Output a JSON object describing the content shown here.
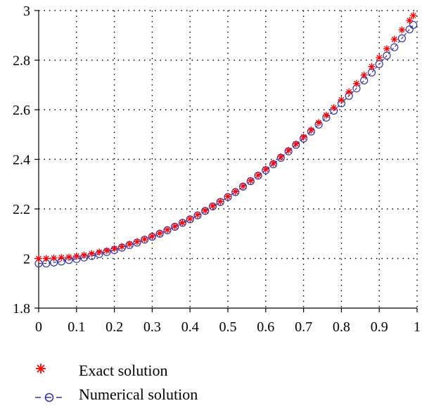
{
  "chart_data": {
    "type": "line",
    "title": "",
    "xlabel": "",
    "ylabel": "",
    "xlim": [
      0,
      1
    ],
    "ylim": [
      1.8,
      3
    ],
    "grid": true,
    "legend_position": "bottom-left",
    "x_ticks": [
      "0",
      "0.1",
      "0.2",
      "0.3",
      "0.4",
      "0.5",
      "0.6",
      "0.7",
      "0.8",
      "0.9",
      "1"
    ],
    "y_ticks": [
      "1.8",
      "2",
      "2.2",
      "2.4",
      "2.6",
      "2.8",
      "3"
    ],
    "x_tick_values": [
      0,
      0.1,
      0.2,
      0.3,
      0.4,
      0.5,
      0.6,
      0.7,
      0.8,
      0.9,
      1
    ],
    "y_tick_values": [
      1.8,
      2.0,
      2.2,
      2.4,
      2.6,
      2.8,
      3.0
    ],
    "series": [
      {
        "name": "Exact solution",
        "color": "#ff0000",
        "marker": "asterisk",
        "x": [
          0.0,
          0.02,
          0.04,
          0.06,
          0.08,
          0.1,
          0.12,
          0.14,
          0.16,
          0.18,
          0.2,
          0.22,
          0.24,
          0.26,
          0.28,
          0.3,
          0.32,
          0.34,
          0.36,
          0.38,
          0.4,
          0.42,
          0.44,
          0.46,
          0.48,
          0.5,
          0.52,
          0.54,
          0.56,
          0.58,
          0.6,
          0.62,
          0.64,
          0.66,
          0.68,
          0.7,
          0.72,
          0.74,
          0.76,
          0.78,
          0.8,
          0.82,
          0.84,
          0.86,
          0.88,
          0.9,
          0.92,
          0.94,
          0.96,
          0.98,
          0.99
        ],
        "values": [
          2.0,
          2.0,
          2.002,
          2.004,
          2.006,
          2.01,
          2.014,
          2.02,
          2.026,
          2.032,
          2.04,
          2.048,
          2.058,
          2.068,
          2.078,
          2.09,
          2.102,
          2.116,
          2.13,
          2.144,
          2.16,
          2.176,
          2.194,
          2.212,
          2.23,
          2.25,
          2.27,
          2.292,
          2.314,
          2.336,
          2.36,
          2.384,
          2.41,
          2.436,
          2.462,
          2.49,
          2.518,
          2.548,
          2.578,
          2.608,
          2.64,
          2.672,
          2.706,
          2.74,
          2.774,
          2.81,
          2.846,
          2.884,
          2.922,
          2.96,
          2.98
        ]
      },
      {
        "name": "Numerical solution",
        "color": "#3333aa",
        "marker": "circle-dashed",
        "x": [
          0.0,
          0.02,
          0.04,
          0.06,
          0.08,
          0.1,
          0.12,
          0.14,
          0.16,
          0.18,
          0.2,
          0.22,
          0.24,
          0.26,
          0.28,
          0.3,
          0.32,
          0.34,
          0.36,
          0.38,
          0.4,
          0.42,
          0.44,
          0.46,
          0.48,
          0.5,
          0.52,
          0.54,
          0.56,
          0.58,
          0.6,
          0.62,
          0.64,
          0.66,
          0.68,
          0.7,
          0.72,
          0.74,
          0.76,
          0.78,
          0.8,
          0.82,
          0.84,
          0.86,
          0.88,
          0.9,
          0.92,
          0.94,
          0.96,
          0.98,
          0.99
        ],
        "values": [
          1.98,
          1.98,
          1.984,
          1.988,
          1.994,
          1.998,
          2.004,
          2.01,
          2.018,
          2.026,
          2.034,
          2.044,
          2.054,
          2.064,
          2.076,
          2.088,
          2.1,
          2.114,
          2.128,
          2.144,
          2.158,
          2.174,
          2.192,
          2.21,
          2.228,
          2.248,
          2.268,
          2.29,
          2.312,
          2.334,
          2.356,
          2.38,
          2.406,
          2.432,
          2.458,
          2.484,
          2.512,
          2.54,
          2.568,
          2.596,
          2.626,
          2.656,
          2.686,
          2.718,
          2.75,
          2.784,
          2.818,
          2.852,
          2.888,
          2.924,
          2.942
        ]
      }
    ]
  },
  "legend": {
    "items": [
      {
        "label": "Exact solution"
      },
      {
        "label": "Numerical solution"
      }
    ]
  }
}
